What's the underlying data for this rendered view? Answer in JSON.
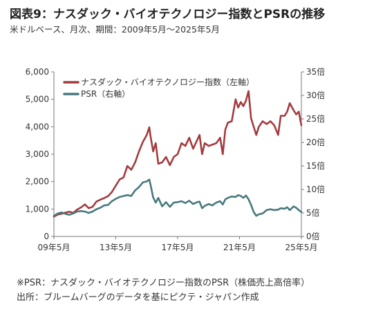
{
  "header": {
    "title": "図表9：ナスダック・バイオテクノロジー指数とPSRの推移",
    "subtitle": "米ドルベース、月次、期間：2009年5月～2025年5月"
  },
  "footer": {
    "note": "※PSR：ナスダック・バイオテクノロジー指数のPSR（株価売上高倍率）",
    "source": "出所：ブルームバーグのデータを基にピクテ・ジャパン作成"
  },
  "chart_data": {
    "type": "line",
    "x_tick_labels": [
      "09年5月",
      "13年5月",
      "17年5月",
      "21年5月",
      "25年5月"
    ],
    "x_ticks": [
      2009.333,
      2013.333,
      2017.333,
      2021.333,
      2025.333
    ],
    "xlim": [
      2009.333,
      2025.333
    ],
    "y_left": {
      "ylim": [
        0,
        6000
      ],
      "ticks": [
        0,
        1000,
        2000,
        3000,
        4000,
        5000,
        6000
      ],
      "tick_labels": [
        "0",
        "1,000",
        "2,000",
        "3,000",
        "4,000",
        "5,000",
        "6,000"
      ]
    },
    "y_right": {
      "ylim": [
        0,
        35
      ],
      "ticks": [
        0,
        5,
        10,
        15,
        20,
        25,
        30,
        35
      ],
      "tick_labels": [
        "0倍",
        "5倍",
        "10倍",
        "15倍",
        "20倍",
        "25倍",
        "30倍",
        "35倍"
      ]
    },
    "legend_position": "top-left",
    "grid": false,
    "series": [
      {
        "name": "ナスダック・バイオテクノロジー指数（左軸）",
        "axis": "left",
        "color": "#a33a3e",
        "points": [
          [
            2009.333,
            720
          ],
          [
            2009.583,
            800
          ],
          [
            2009.833,
            830
          ],
          [
            2010.083,
            870
          ],
          [
            2010.333,
            900
          ],
          [
            2010.583,
            860
          ],
          [
            2010.833,
            980
          ],
          [
            2011.083,
            1060
          ],
          [
            2011.333,
            1170
          ],
          [
            2011.583,
            1030
          ],
          [
            2011.833,
            1080
          ],
          [
            2012.083,
            1270
          ],
          [
            2012.333,
            1340
          ],
          [
            2012.583,
            1400
          ],
          [
            2012.833,
            1470
          ],
          [
            2013.083,
            1620
          ],
          [
            2013.333,
            1850
          ],
          [
            2013.583,
            2080
          ],
          [
            2013.833,
            2150
          ],
          [
            2014.083,
            2570
          ],
          [
            2014.333,
            2430
          ],
          [
            2014.583,
            2700
          ],
          [
            2014.833,
            3100
          ],
          [
            2015.083,
            3450
          ],
          [
            2015.333,
            3700
          ],
          [
            2015.5,
            3980
          ],
          [
            2015.583,
            3650
          ],
          [
            2015.75,
            3100
          ],
          [
            2015.917,
            3400
          ],
          [
            2016.083,
            2650
          ],
          [
            2016.333,
            2700
          ],
          [
            2016.583,
            2900
          ],
          [
            2016.833,
            2600
          ],
          [
            2017.083,
            2900
          ],
          [
            2017.333,
            3000
          ],
          [
            2017.583,
            3400
          ],
          [
            2017.833,
            3300
          ],
          [
            2018.083,
            3600
          ],
          [
            2018.333,
            3200
          ],
          [
            2018.583,
            3500
          ],
          [
            2018.75,
            3700
          ],
          [
            2018.917,
            3000
          ],
          [
            2019.083,
            3400
          ],
          [
            2019.333,
            3300
          ],
          [
            2019.583,
            3350
          ],
          [
            2019.833,
            3400
          ],
          [
            2020.083,
            3600
          ],
          [
            2020.25,
            3000
          ],
          [
            2020.417,
            3900
          ],
          [
            2020.583,
            4150
          ],
          [
            2020.833,
            4200
          ],
          [
            2021.083,
            5000
          ],
          [
            2021.25,
            4700
          ],
          [
            2021.417,
            4900
          ],
          [
            2021.583,
            4750
          ],
          [
            2021.75,
            4950
          ],
          [
            2021.917,
            5300
          ],
          [
            2022.083,
            4300
          ],
          [
            2022.25,
            4000
          ],
          [
            2022.417,
            3700
          ],
          [
            2022.583,
            4000
          ],
          [
            2022.833,
            4200
          ],
          [
            2023.083,
            4100
          ],
          [
            2023.333,
            4200
          ],
          [
            2023.583,
            4050
          ],
          [
            2023.833,
            3700
          ],
          [
            2024.0,
            4400
          ],
          [
            2024.25,
            4400
          ],
          [
            2024.417,
            4550
          ],
          [
            2024.583,
            4860
          ],
          [
            2024.833,
            4600
          ],
          [
            2025.0,
            4450
          ],
          [
            2025.167,
            4550
          ],
          [
            2025.333,
            4050
          ]
        ]
      },
      {
        "name": "PSR（右軸）",
        "axis": "right",
        "color": "#46797c",
        "points": [
          [
            2009.333,
            4.4
          ],
          [
            2009.583,
            4.9
          ],
          [
            2009.833,
            5.1
          ],
          [
            2010.083,
            4.8
          ],
          [
            2010.333,
            4.6
          ],
          [
            2010.583,
            4.9
          ],
          [
            2010.833,
            5.3
          ],
          [
            2011.083,
            5.4
          ],
          [
            2011.333,
            5.3
          ],
          [
            2011.583,
            5.0
          ],
          [
            2011.833,
            5.3
          ],
          [
            2012.083,
            5.8
          ],
          [
            2012.333,
            6.1
          ],
          [
            2012.583,
            6.6
          ],
          [
            2012.833,
            6.7
          ],
          [
            2013.083,
            7.5
          ],
          [
            2013.333,
            8.0
          ],
          [
            2013.583,
            8.4
          ],
          [
            2013.833,
            8.6
          ],
          [
            2014.083,
            8.8
          ],
          [
            2014.333,
            8.6
          ],
          [
            2014.583,
            9.8
          ],
          [
            2014.833,
            10.5
          ],
          [
            2015.083,
            11.5
          ],
          [
            2015.333,
            11.7
          ],
          [
            2015.5,
            12.1
          ],
          [
            2015.583,
            11.0
          ],
          [
            2015.75,
            8.3
          ],
          [
            2015.917,
            7.2
          ],
          [
            2016.083,
            8.2
          ],
          [
            2016.333,
            6.4
          ],
          [
            2016.583,
            7.3
          ],
          [
            2016.833,
            6.3
          ],
          [
            2017.083,
            7.2
          ],
          [
            2017.333,
            7.3
          ],
          [
            2017.583,
            7.5
          ],
          [
            2017.833,
            7.1
          ],
          [
            2018.083,
            7.6
          ],
          [
            2018.333,
            6.9
          ],
          [
            2018.583,
            7.3
          ],
          [
            2018.75,
            7.4
          ],
          [
            2018.917,
            6.0
          ],
          [
            2019.083,
            6.5
          ],
          [
            2019.333,
            6.9
          ],
          [
            2019.583,
            6.6
          ],
          [
            2019.833,
            7.2
          ],
          [
            2020.083,
            7.5
          ],
          [
            2020.25,
            6.8
          ],
          [
            2020.417,
            7.9
          ],
          [
            2020.583,
            8.2
          ],
          [
            2020.833,
            8.5
          ],
          [
            2021.083,
            8.4
          ],
          [
            2021.25,
            8.8
          ],
          [
            2021.417,
            8.6
          ],
          [
            2021.583,
            8.2
          ],
          [
            2021.75,
            8.7
          ],
          [
            2021.917,
            7.9
          ],
          [
            2022.083,
            6.7
          ],
          [
            2022.25,
            5.2
          ],
          [
            2022.417,
            4.4
          ],
          [
            2022.583,
            4.7
          ],
          [
            2022.833,
            4.9
          ],
          [
            2023.083,
            5.6
          ],
          [
            2023.333,
            5.8
          ],
          [
            2023.583,
            5.6
          ],
          [
            2023.833,
            5.7
          ],
          [
            2024.0,
            6.0
          ],
          [
            2024.25,
            5.9
          ],
          [
            2024.417,
            6.2
          ],
          [
            2024.583,
            5.6
          ],
          [
            2024.833,
            6.4
          ],
          [
            2025.0,
            6.1
          ],
          [
            2025.167,
            5.6
          ],
          [
            2025.333,
            5.2
          ]
        ]
      }
    ]
  }
}
